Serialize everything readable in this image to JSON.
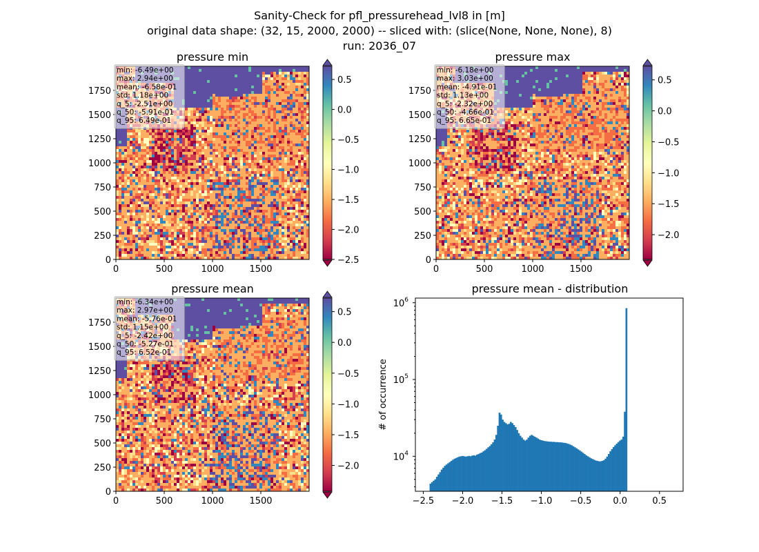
{
  "figure": {
    "suptitle_lines": [
      "Sanity-Check for pfl_pressurehead_lvl8 in [m]",
      "original data shape: (32, 15, 2000, 2000) -- sliced with: (slice(None, None, None), 8)",
      "run: 2036_07"
    ]
  },
  "colors": {
    "hist_bar": "#1f77b4",
    "colormap": [
      "#9e0142",
      "#d53e4f",
      "#f46d43",
      "#fdae61",
      "#fee08b",
      "#ffffbf",
      "#e6f598",
      "#abdda4",
      "#66c2a5",
      "#3288bd",
      "#5e4fa2"
    ]
  },
  "chart_data": [
    {
      "type": "heatmap",
      "title": "pressure min",
      "colormap": "Spectral",
      "xticks": [
        "0",
        "500",
        "1000",
        "1500"
      ],
      "yticks": [
        "0",
        "250",
        "500",
        "750",
        "1000",
        "1250",
        "1500",
        "1750"
      ],
      "xlim": [
        0,
        2000
      ],
      "ylim": [
        0,
        2000
      ],
      "colorbar": {
        "range": [
          -2.5,
          0.72
        ],
        "ticks": [
          "0.5",
          "0.0",
          "−0.5",
          "−1.0",
          "−1.5",
          "−2.0",
          "−2.5"
        ],
        "tick_values": [
          0.5,
          0.0,
          -0.5,
          -1.0,
          -1.5,
          -2.0,
          -2.5
        ]
      },
      "stats": [
        "min: -6.49e+00",
        "max: 2.94e+00",
        "mean: -6.58e-01",
        "std: 1.18e+00",
        "q_5: -2.51e+00",
        "q_50: -5.91e-01",
        "q_95: 6.49e-01"
      ]
    },
    {
      "type": "heatmap",
      "title": "pressure max",
      "colormap": "Spectral",
      "xticks": [
        "0",
        "500",
        "1000",
        "1500"
      ],
      "yticks": [
        "0",
        "250",
        "500",
        "750",
        "1000",
        "1250",
        "1500",
        "1750"
      ],
      "xlim": [
        0,
        2000
      ],
      "ylim": [
        0,
        2000
      ],
      "colorbar": {
        "range": [
          -2.4,
          0.72
        ],
        "ticks": [
          "0.5",
          "0.0",
          "−0.5",
          "−1.0",
          "−1.5",
          "−2.0"
        ],
        "tick_values": [
          0.5,
          0.0,
          -0.5,
          -1.0,
          -1.5,
          -2.0
        ]
      },
      "stats": [
        "min: -6.18e+00",
        "max: 3.03e+00",
        "mean: -4.91e-01",
        "std: 1.13e+00",
        "q_5: -2.32e+00",
        "q_50: -4.66e-01",
        "q_95: 6.65e-01"
      ]
    },
    {
      "type": "heatmap",
      "title": "pressure mean",
      "colormap": "Spectral",
      "xticks": [
        "0",
        "500",
        "1000",
        "1500"
      ],
      "yticks": [
        "0",
        "250",
        "500",
        "750",
        "1000",
        "1250",
        "1500",
        "1750"
      ],
      "xlim": [
        0,
        2000
      ],
      "ylim": [
        0,
        2000
      ],
      "colorbar": {
        "range": [
          -2.42,
          0.72
        ],
        "ticks": [
          "0.5",
          "0.0",
          "−0.5",
          "−1.0",
          "−1.5",
          "−2.0"
        ],
        "tick_values": [
          0.5,
          0.0,
          -0.5,
          -1.0,
          -1.5,
          -2.0
        ]
      },
      "stats": [
        "min: -6.34e+00",
        "max: 2.97e+00",
        "mean: -5.76e-01",
        "std: 1.15e+00",
        "q_5: -2.42e+00",
        "q_50: -5.27e-01",
        "q_95: 6.52e-01"
      ]
    },
    {
      "type": "bar",
      "title": "pressure mean - distribution",
      "ylabel": "# of occurrence",
      "yscale": "log",
      "xlim": [
        -2.6,
        0.8
      ],
      "ylim": [
        3500,
        1150000
      ],
      "xticks": [
        "−2.5",
        "−2.0",
        "−1.5",
        "−1.0",
        "−0.5",
        "0.0",
        "0.5"
      ],
      "xtick_values": [
        -2.5,
        -2.0,
        -1.5,
        -1.0,
        -0.5,
        0.0,
        0.5
      ],
      "yticks": [
        "10",
        "10",
        "10"
      ],
      "ytick_exponents": [
        "4",
        "5",
        "6"
      ],
      "ytick_values": [
        10000,
        100000,
        1000000
      ],
      "bin_start": -2.42,
      "bin_width": 0.0204,
      "values": [
        4400,
        4600,
        4800,
        5000,
        5400,
        5800,
        6200,
        6700,
        7100,
        7500,
        7800,
        8100,
        8400,
        8700,
        9000,
        9300,
        9500,
        9700,
        9900,
        10000,
        10100,
        10000,
        9900,
        10000,
        10100,
        10000,
        10200,
        10300,
        10200,
        10500,
        10700,
        11000,
        11200,
        11600,
        12000,
        12500,
        13100,
        13600,
        14300,
        15200,
        16500,
        19000,
        25000,
        37000,
        35000,
        30000,
        28000,
        27000,
        26000,
        26500,
        28000,
        27000,
        25500,
        24000,
        22000,
        20000,
        18500,
        17500,
        16500,
        16000,
        16500,
        17500,
        18500,
        19000,
        18500,
        18000,
        17500,
        17000,
        16500,
        16200,
        16000,
        15800,
        15700,
        15600,
        15500,
        15500,
        15400,
        15400,
        15300,
        15300,
        15200,
        15200,
        15100,
        15000,
        14900,
        14700,
        14500,
        14200,
        13900,
        13500,
        13100,
        12700,
        12300,
        11900,
        11500,
        11100,
        10700,
        10300,
        10000,
        9700,
        9400,
        9200,
        9000,
        8800,
        8700,
        8600,
        8600,
        8700,
        8900,
        9300,
        9900,
        10700,
        11600,
        12400,
        13200,
        13900,
        14600,
        15300,
        16000,
        16500,
        18000,
        38000,
        850000
      ]
    }
  ]
}
